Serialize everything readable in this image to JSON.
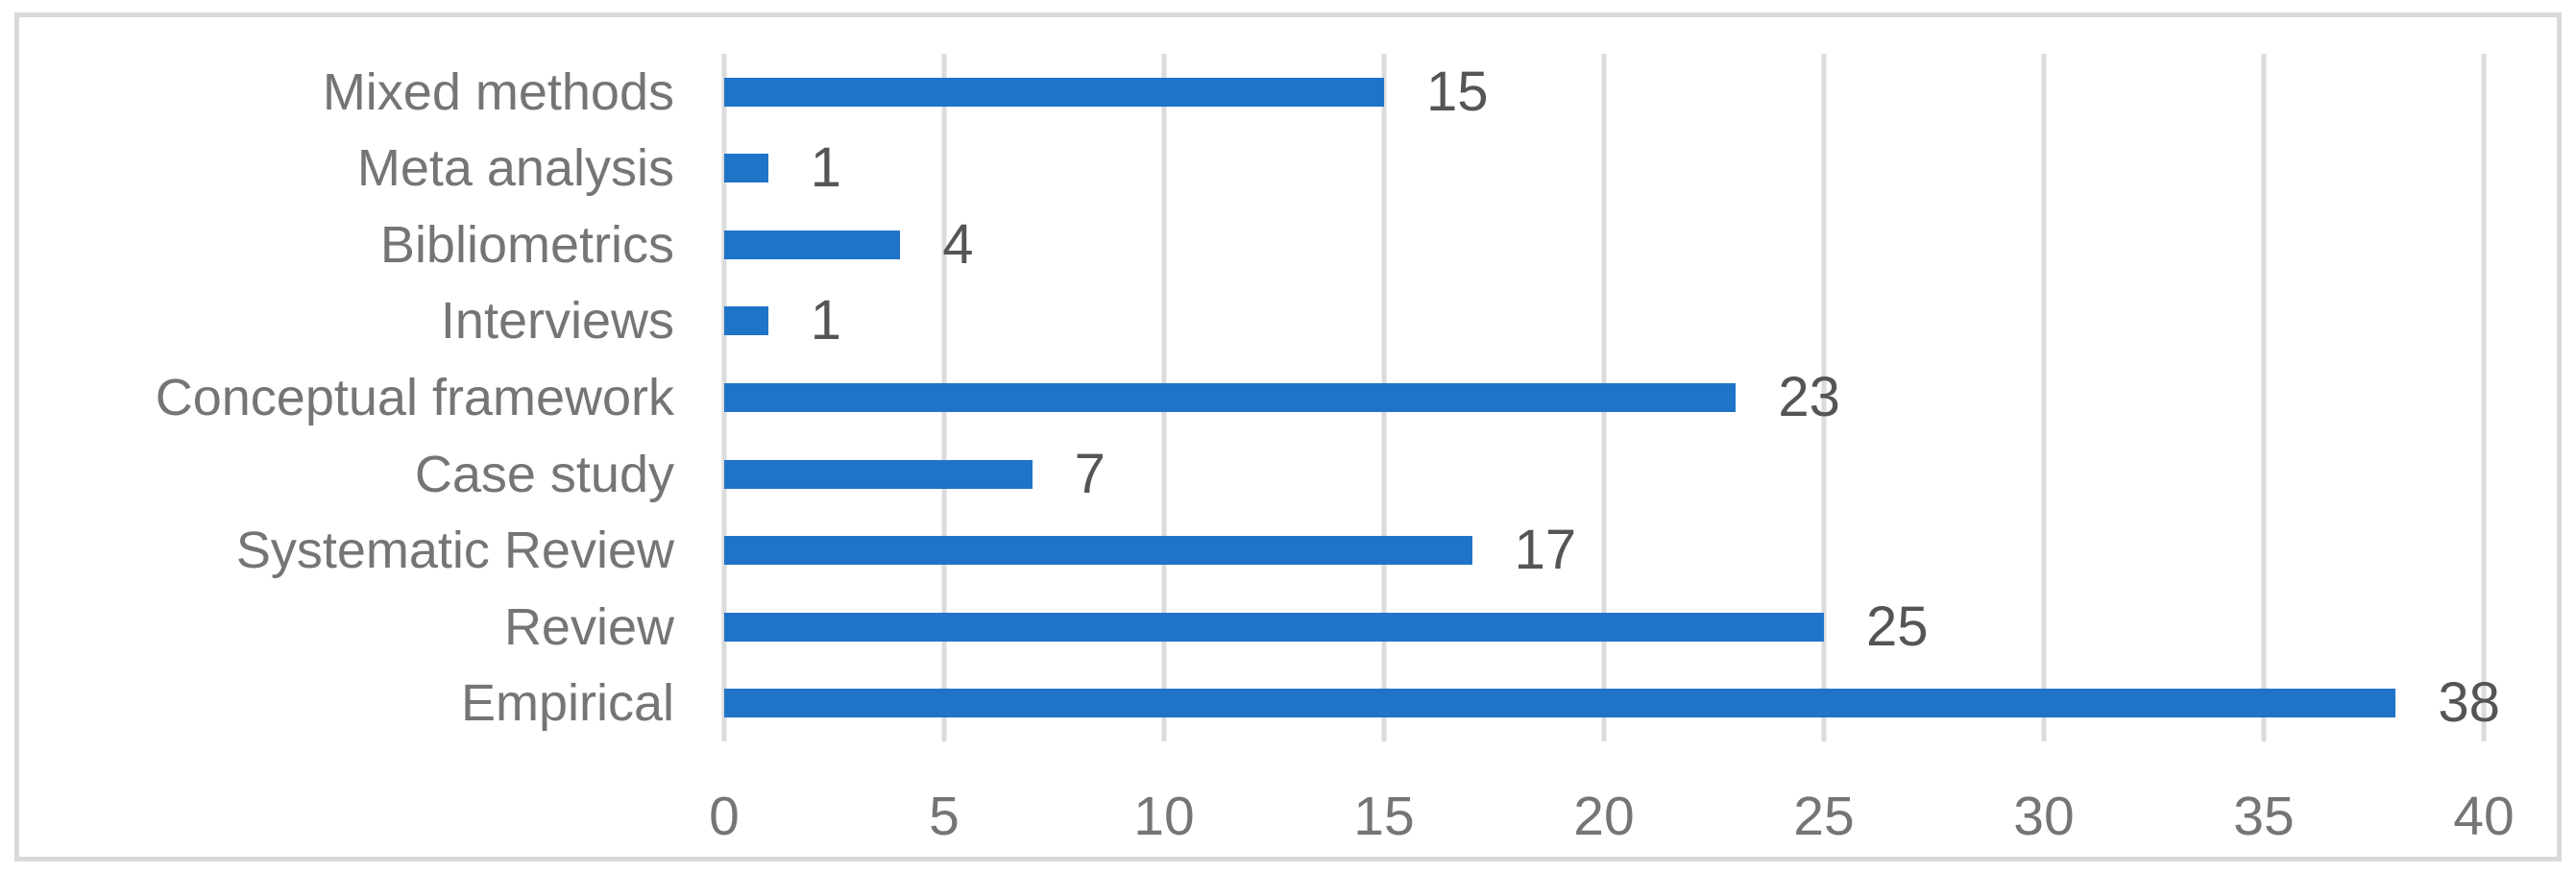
{
  "chart_data": {
    "type": "bar",
    "orientation": "horizontal",
    "title": "",
    "xlabel": "",
    "ylabel": "",
    "categories": [
      "Mixed methods",
      "Meta analysis",
      "Bibliometrics",
      "Interviews",
      "Conceptual framework",
      "Case study",
      "Systematic Review",
      "Review",
      "Empirical"
    ],
    "values": [
      15,
      1,
      4,
      1,
      23,
      7,
      17,
      25,
      38
    ],
    "data_labels": [
      "15",
      "1",
      "4",
      "1",
      "23",
      "7",
      "17",
      "25",
      "38"
    ],
    "xlim": [
      0,
      40
    ],
    "x_ticks": [
      0,
      5,
      10,
      15,
      20,
      25,
      30,
      35,
      40
    ],
    "x_tick_labels": [
      "0",
      "5",
      "10",
      "15",
      "20",
      "25",
      "30",
      "35",
      "40"
    ],
    "grid": "vertical",
    "legend": "none",
    "colors": {
      "bar": "#1F74C8",
      "gridline": "#DBDBDB",
      "frame_border": "#D9D9D9",
      "category_label": "#757575",
      "tick_label": "#757575",
      "data_label": "#555555",
      "background": "#FFFFFF"
    }
  }
}
